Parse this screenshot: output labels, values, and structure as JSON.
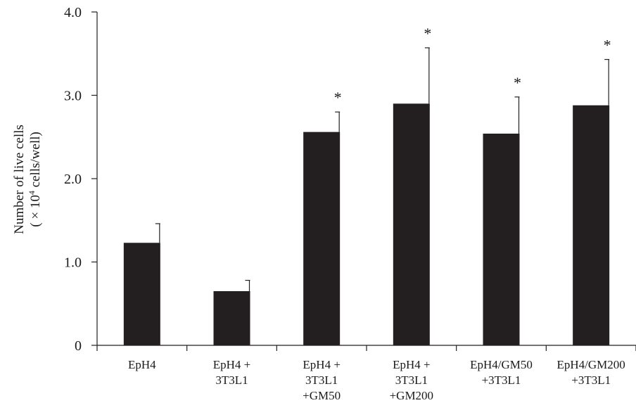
{
  "chart_data": {
    "type": "bar",
    "ylabel_line1": "Number of live cells",
    "ylabel_line2_prefix": "( × 10",
    "ylabel_line2_sup": "4",
    "ylabel_line2_suffix": " cells/well)",
    "ylim": [
      0,
      4.0
    ],
    "yticks": [
      0,
      1.0,
      2.0,
      3.0,
      4.0
    ],
    "ytick_labels": [
      "0",
      "1.0",
      "2.0",
      "3.0",
      "4.0"
    ],
    "grid": false,
    "categories": [
      [
        "EpH4"
      ],
      [
        "EpH4 +",
        "3T3L1"
      ],
      [
        "EpH4 +",
        "3T3L1",
        "+GM50"
      ],
      [
        "EpH4 +",
        "3T3L1",
        "+GM200"
      ],
      [
        "EpH4/GM50",
        "+3T3L1"
      ],
      [
        "EpH4/GM200",
        "+3T3L1"
      ]
    ],
    "values": [
      1.23,
      0.65,
      2.56,
      2.9,
      2.54,
      2.88
    ],
    "errors": [
      0.23,
      0.13,
      0.24,
      0.67,
      0.44,
      0.55
    ],
    "significance": [
      "",
      "",
      "*",
      "*",
      "*",
      "*"
    ],
    "bar_color": "#231f20"
  }
}
